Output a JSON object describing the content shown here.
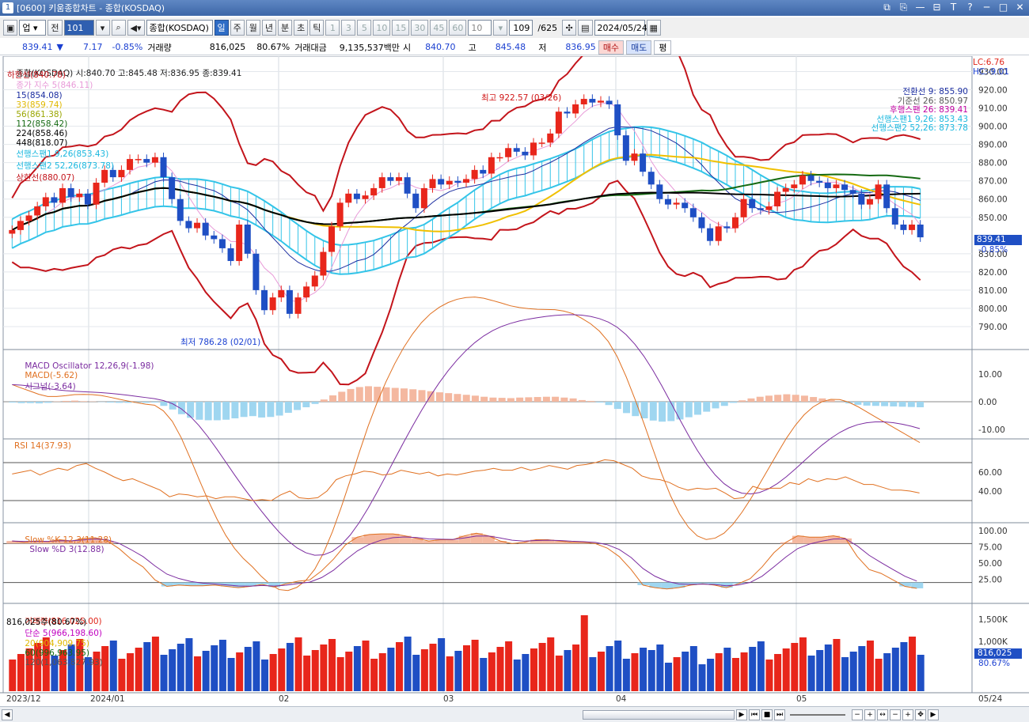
{
  "window": {
    "number": "1",
    "title": "[0600] 키움종합차트 - 종합(KOSDAQ)",
    "controls": [
      "⧉",
      "⎘",
      "—",
      "⊟",
      "T",
      "?",
      "─",
      "□",
      "✕"
    ]
  },
  "toolbar": {
    "market": "업",
    "prefix": "전",
    "code": "101",
    "name": "종합(KOSDAQ)",
    "periods": [
      "일",
      "주",
      "월",
      "년",
      "분",
      "초",
      "틱"
    ],
    "selected_period": "일",
    "intervals": [
      "1",
      "3",
      "5",
      "10",
      "15",
      "30",
      "45",
      "60",
      "10"
    ],
    "count": "109",
    "total": "/625",
    "date": "2024/05/24"
  },
  "quote": {
    "price": "839.41",
    "arrow": "▼",
    "change": "7.17",
    "pct": "-0.85%",
    "vol_label": "거래량",
    "volume": "816,025",
    "vol_ratio": "80.67%",
    "amt_label": "거래대금",
    "amount": "9,135,537백만",
    "open_label": "시",
    "open": "840.70",
    "high_label": "고",
    "high": "845.48",
    "low_label": "저",
    "low": "836.95",
    "buy": "매수",
    "sell": "매도",
    "eval": "평"
  },
  "main_legend": {
    "symbol": "종합(KOSDAQ) 시:840.70 고:845.48 저:836.95 종:839.41",
    "close_ma": "종가 지수 5(846.11)",
    "ma15": "15(854.08)",
    "ma33": "33(859.74)",
    "ma56": "56(861.38)",
    "ma112": "112(858.42)",
    "ma224": "224(858.46)",
    "ma448": "448(818.07)",
    "span1": "선행스팬1 9,26(853.43)",
    "span2": "선행스팬2 52,26(873.78)",
    "upper": "상한선(880.07)",
    "lower": "하한선(840.78)",
    "lc": "LC:6.76",
    "hc": "HC:-9.01"
  },
  "ichimoku_box": {
    "conv": "전환선 9: 855.90",
    "base": "기준선 26: 850.97",
    "lag": "후행스팬 26: 839.41",
    "s1": "선행스팬1 9,26: 853.43",
    "s2": "선행스팬2 52,26: 873.78"
  },
  "annotations": {
    "high": "최고 922.57 (03/26)",
    "low": "최저 786.28 (02/01)"
  },
  "price_badge": {
    "value": "839.41",
    "pct": "-0.85%"
  },
  "price_axis": [
    "930.00",
    "920.00",
    "910.00",
    "900.00",
    "890.00",
    "880.00",
    "870.00",
    "860.00",
    "850.00",
    "830.00",
    "820.00",
    "810.00",
    "800.00",
    "790.00"
  ],
  "macd": {
    "title": "MACD Oscillator 12,26,9(-1.98)",
    "macd": "MACD(-5.62)",
    "signal": "시그널(-3.64)",
    "axis": [
      "10.00",
      "0.00",
      "-10.00"
    ]
  },
  "rsi": {
    "title": "RSI 14(37.93)",
    "axis": [
      "60.00",
      "40.00"
    ]
  },
  "stoch": {
    "k": "Slow %K 12,3(11.28)",
    "d": "Slow %D 3(12.88)",
    "axis": [
      "100.00",
      "75.00",
      "50.00",
      "25.00"
    ]
  },
  "volume": {
    "title": "거래량(816,025.00)",
    "ma5": "단순 5(966,198.60)",
    "ma20": "20(904,909.75)",
    "ma60": "60(996,963.95)",
    "ma120": "120(1,063,827.93)",
    "sub": "816,025주(80.67%)",
    "axis": [
      "1,500K",
      "1,000K"
    ],
    "badge": "816,025",
    "badge_pct": "80.67%"
  },
  "date_axis": [
    "2023/12",
    "2024/01",
    "02",
    "03",
    "04",
    "05",
    "05/24"
  ],
  "colors": {
    "up": "#e8261b",
    "down": "#1f4fc4",
    "cloud": "#33c4e8",
    "bb": "#c3141b"
  },
  "chart_data": {
    "type": "candlestick",
    "closes": [
      843,
      848,
      851,
      856,
      861,
      858,
      866,
      861,
      863,
      857,
      869,
      876,
      872,
      876,
      882,
      882,
      880,
      883,
      872,
      860,
      848,
      844,
      847,
      840,
      838,
      833,
      826,
      846,
      830,
      810,
      799,
      806,
      810,
      797,
      806,
      812,
      818,
      831,
      845,
      858,
      863,
      860,
      862,
      866,
      872,
      870,
      872,
      863,
      855,
      866,
      871,
      868,
      870,
      869,
      871,
      876,
      874,
      883,
      883,
      888,
      886,
      884,
      891,
      891,
      896,
      908,
      907,
      912,
      915,
      913,
      914,
      912,
      895,
      881,
      885,
      875,
      868,
      860,
      857,
      858,
      855,
      850,
      844,
      837,
      845,
      844,
      850,
      860,
      855,
      854,
      856,
      864,
      866,
      868,
      873,
      870,
      869,
      866,
      868,
      865,
      863,
      857,
      860,
      868,
      855,
      846,
      843,
      846,
      839
    ],
    "y_range": [
      780,
      935
    ],
    "macd_hist": [
      -0.3,
      -0.5,
      -0.5,
      -0.6,
      -0.4,
      0.1,
      0.3,
      0.4,
      0.2,
      0.1,
      -0.1,
      -0.3,
      -0.4,
      -0.4,
      -0.4,
      -0.4,
      -0.3,
      -1.5,
      -2.8,
      -4.5,
      -5.8,
      -6.5,
      -6.7,
      -6.7,
      -6.5,
      -6.0,
      -5.5,
      -5.2,
      -5.7,
      -5.5,
      -5.0,
      -4.0,
      -3.0,
      -2.0,
      -0.8,
      0.8,
      2.3,
      3.6,
      4.6,
      5.3,
      5.6,
      5.4,
      5.2,
      5.0,
      4.8,
      4.5,
      4.2,
      3.8,
      3.4,
      3.1,
      2.8,
      2.5,
      2.2,
      1.8,
      1.5,
      1.4,
      1.3,
      1.5,
      1.6,
      1.7,
      1.8,
      1.8,
      1.5,
      1.2,
      0.6,
      0.3,
      -0.3,
      -1.2,
      -2.6,
      -4.1,
      -5.2,
      -6.0,
      -6.8,
      -7.2,
      -7.0,
      -6.4,
      -5.6,
      -4.7,
      -3.6,
      -2.4,
      -1.5,
      -0.4,
      0.5,
      1.2,
      1.8,
      2.2,
      2.5,
      2.7,
      2.5,
      2.2,
      1.7,
      1.2,
      0.6,
      0.0,
      -0.6,
      -1.1,
      -1.4,
      -1.5,
      -1.6,
      -1.7,
      -1.8,
      -1.9,
      -2.0
    ],
    "rsi": [
      58,
      60,
      62,
      57,
      61,
      64,
      62,
      67,
      69,
      64,
      60,
      55,
      51,
      53,
      49,
      45,
      41,
      34,
      37,
      36,
      34,
      35,
      32,
      34,
      34,
      32,
      30,
      31,
      30,
      36,
      40,
      33,
      32,
      33,
      40,
      52,
      56,
      58,
      61,
      60,
      57,
      58,
      62,
      60,
      58,
      60,
      56,
      58,
      57,
      59,
      61,
      62,
      64,
      62,
      62,
      65,
      62,
      64,
      67,
      65,
      63,
      67,
      68,
      70,
      73,
      72,
      68,
      64,
      56,
      53,
      52,
      49,
      44,
      41,
      43,
      42,
      43,
      38,
      32,
      33,
      45,
      42,
      43,
      43,
      49,
      47,
      53,
      50,
      53,
      52,
      55,
      51,
      47,
      47,
      44,
      41,
      41,
      40,
      38
    ],
    "stoch_k": [
      84,
      82,
      84,
      83,
      86,
      84,
      88,
      89,
      84,
      72,
      56,
      44,
      24,
      14,
      16,
      15,
      15,
      16,
      14,
      12,
      14,
      17,
      13,
      18,
      22,
      24,
      38,
      56,
      78,
      90,
      94,
      95,
      95,
      92,
      88,
      84,
      86,
      86,
      92,
      96,
      92,
      84,
      80,
      82,
      86,
      86,
      84,
      82,
      82,
      80,
      73,
      60,
      40,
      16,
      12,
      10,
      12,
      16,
      18,
      16,
      12,
      18,
      26,
      44,
      66,
      82,
      92,
      90,
      90,
      92,
      88,
      60,
      40,
      34,
      24,
      14,
      11
    ]
  }
}
